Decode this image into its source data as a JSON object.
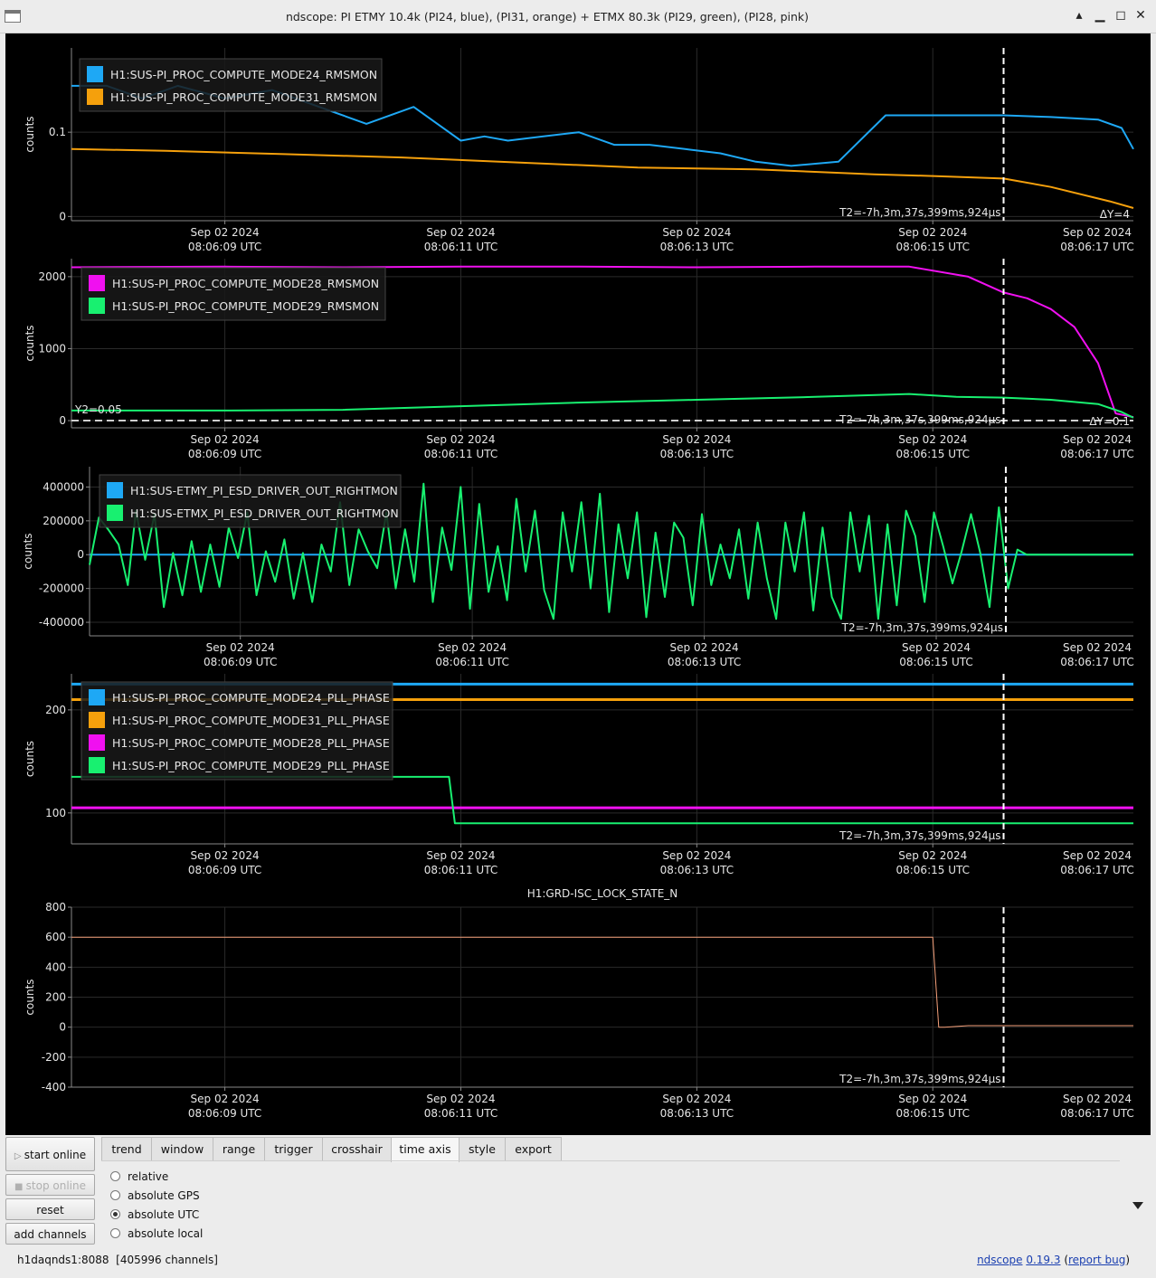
{
  "window": {
    "title": "ndscope: PI ETMY 10.4k (PI24, blue), (PI31, orange) + ETMX 80.3k (PI29, green), (PI28, pink)",
    "minimize_glyph": "▁",
    "maximize_glyph": "◻",
    "close_glyph": "✕",
    "restore_glyph": "▴"
  },
  "colors": {
    "blue": "#1ea8f5",
    "orange": "#f5a00c",
    "magenta": "#f010f0",
    "green": "#18f070",
    "peach": "#f5a07a",
    "cursor": "#ffffff",
    "background": "#000000"
  },
  "common": {
    "ylabel": "counts",
    "time_ticks": [
      {
        "date": "Sep 02 2024",
        "time": "08:06:09 UTC"
      },
      {
        "date": "Sep 02 2024",
        "time": "08:06:11 UTC"
      },
      {
        "date": "Sep 02 2024",
        "time": "08:06:13 UTC"
      },
      {
        "date": "Sep 02 2024",
        "time": "08:06:15 UTC"
      },
      {
        "date": "Sep 02 2024",
        "time": "08:06:17 UTC"
      }
    ],
    "t2_label": "T2=-7h,3m,37s,399ms,924µs",
    "cursor_time_s": 15.6
  },
  "chart_data": [
    {
      "type": "line",
      "title": "",
      "xrange": [
        7.7,
        16.7
      ],
      "ylabel": "counts",
      "yticks": [
        "0.1",
        "0"
      ],
      "delta_label": "ΔY=4",
      "legend": [
        "H1:SUS-PI_PROC_COMPUTE_MODE24_RMSMON",
        "H1:SUS-PI_PROC_COMPUTE_MODE31_RMSMON"
      ],
      "series": [
        {
          "name": "H1:SUS-PI_PROC_COMPUTE_MODE24_RMSMON",
          "color": "blue",
          "x": [
            7.7,
            8.0,
            8.3,
            8.6,
            9.0,
            9.4,
            9.8,
            10.2,
            10.6,
            11.0,
            11.2,
            11.4,
            11.7,
            12.0,
            12.3,
            12.6,
            12.9,
            13.2,
            13.5,
            13.8,
            14.2,
            14.6,
            15.0,
            15.3,
            15.6,
            16.0,
            16.4,
            16.6,
            16.7
          ],
          "y": [
            0.155,
            0.155,
            0.14,
            0.155,
            0.14,
            0.15,
            0.13,
            0.11,
            0.13,
            0.09,
            0.095,
            0.09,
            0.095,
            0.1,
            0.085,
            0.085,
            0.08,
            0.075,
            0.065,
            0.06,
            0.065,
            0.12,
            0.12,
            0.12,
            0.12,
            0.118,
            0.115,
            0.105,
            0.08
          ]
        },
        {
          "name": "H1:SUS-PI_PROC_COMPUTE_MODE31_RMSMON",
          "color": "orange",
          "x": [
            7.7,
            8.5,
            9.5,
            10.5,
            11.5,
            12.5,
            13.5,
            14.5,
            15.0,
            15.6,
            16.0,
            16.5,
            16.7
          ],
          "y": [
            0.08,
            0.078,
            0.074,
            0.07,
            0.064,
            0.058,
            0.056,
            0.05,
            0.048,
            0.045,
            0.035,
            0.018,
            0.01
          ]
        }
      ]
    },
    {
      "type": "line",
      "title": "",
      "xrange": [
        7.7,
        16.7
      ],
      "ylabel": "counts",
      "yticks": [
        "2000",
        "1000",
        "0"
      ],
      "y2_label": "Y2=0.05",
      "delta_label": "ΔY=0.1",
      "legend": [
        "H1:SUS-PI_PROC_COMPUTE_MODE28_RMSMON",
        "H1:SUS-PI_PROC_COMPUTE_MODE29_RMSMON"
      ],
      "series": [
        {
          "name": "H1:SUS-PI_PROC_COMPUTE_MODE28_RMSMON",
          "color": "magenta",
          "x": [
            7.7,
            9.0,
            10.0,
            11.0,
            12.0,
            13.0,
            14.0,
            14.8,
            15.3,
            15.6,
            15.8,
            16.0,
            16.2,
            16.4,
            16.55,
            16.7
          ],
          "y": [
            2130,
            2140,
            2130,
            2140,
            2140,
            2130,
            2140,
            2140,
            2000,
            1780,
            1700,
            1550,
            1300,
            800,
            100,
            50
          ]
        },
        {
          "name": "H1:SUS-PI_PROC_COMPUTE_MODE29_RMSMON",
          "color": "green",
          "x": [
            7.7,
            9.0,
            10.0,
            11.0,
            12.0,
            13.0,
            14.0,
            14.8,
            15.2,
            15.6,
            16.0,
            16.4,
            16.6,
            16.7
          ],
          "y": [
            140,
            140,
            150,
            200,
            250,
            290,
            330,
            370,
            330,
            320,
            290,
            230,
            120,
            40
          ]
        }
      ]
    },
    {
      "type": "line",
      "title": "",
      "xrange": [
        7.7,
        16.7
      ],
      "ylabel": "counts",
      "yticks": [
        "400000",
        "200000",
        "0",
        "-200000",
        "-400000"
      ],
      "legend": [
        "H1:SUS-ETMY_PI_ESD_DRIVER_OUT_RIGHTMON",
        "H1:SUS-ETMX_PI_ESD_DRIVER_OUT_RIGHTMON"
      ],
      "series": [
        {
          "name": "H1:SUS-ETMY_PI_ESD_DRIVER_OUT_RIGHTMON",
          "color": "blue",
          "x": [
            7.7,
            16.7
          ],
          "y": [
            0,
            0
          ]
        },
        {
          "name": "H1:SUS-ETMX_PI_ESD_DRIVER_OUT_RIGHTMON",
          "color": "green",
          "x": [
            7.7,
            7.78,
            7.86,
            7.95,
            8.03,
            8.1,
            8.18,
            8.26,
            8.34,
            8.42,
            8.5,
            8.58,
            8.66,
            8.74,
            8.82,
            8.9,
            8.98,
            9.06,
            9.14,
            9.22,
            9.3,
            9.38,
            9.46,
            9.54,
            9.62,
            9.7,
            9.78,
            9.86,
            9.94,
            10.02,
            10.1,
            10.18,
            10.26,
            10.34,
            10.42,
            10.5,
            10.58,
            10.66,
            10.74,
            10.82,
            10.9,
            10.98,
            11.06,
            11.14,
            11.22,
            11.3,
            11.38,
            11.46,
            11.54,
            11.62,
            11.7,
            11.78,
            11.86,
            11.94,
            12.02,
            12.1,
            12.18,
            12.26,
            12.34,
            12.42,
            12.5,
            12.58,
            12.66,
            12.74,
            12.82,
            12.9,
            12.98,
            13.06,
            13.14,
            13.22,
            13.3,
            13.38,
            13.46,
            13.54,
            13.62,
            13.7,
            13.78,
            13.86,
            13.94,
            14.02,
            14.1,
            14.18,
            14.26,
            14.34,
            14.42,
            14.5,
            14.58,
            14.66,
            14.74,
            14.82,
            14.9,
            14.98,
            15.06,
            15.14,
            15.22,
            15.3,
            15.38,
            15.46,
            15.54,
            15.62,
            15.7,
            15.78,
            15.86,
            15.94,
            16.7
          ],
          "y": [
            -60000,
            220000,
            150000,
            60000,
            -180000,
            260000,
            -30000,
            240000,
            -310000,
            10000,
            -240000,
            80000,
            -220000,
            60000,
            -190000,
            160000,
            -20000,
            250000,
            -240000,
            20000,
            -160000,
            90000,
            -260000,
            10000,
            -280000,
            60000,
            -100000,
            310000,
            -180000,
            150000,
            20000,
            -80000,
            250000,
            -200000,
            150000,
            -160000,
            420000,
            -280000,
            160000,
            -90000,
            400000,
            -320000,
            300000,
            -220000,
            50000,
            -270000,
            330000,
            -100000,
            260000,
            -210000,
            -380000,
            250000,
            -100000,
            310000,
            -200000,
            360000,
            -340000,
            180000,
            -140000,
            250000,
            -370000,
            130000,
            -250000,
            190000,
            100000,
            -300000,
            240000,
            -180000,
            60000,
            -140000,
            150000,
            -260000,
            190000,
            -140000,
            -380000,
            190000,
            -100000,
            250000,
            -330000,
            160000,
            -250000,
            -380000,
            250000,
            -100000,
            230000,
            -380000,
            180000,
            -300000,
            260000,
            110000,
            -280000,
            250000,
            50000,
            -170000,
            20000,
            240000,
            10000,
            -310000,
            280000,
            -200000,
            30000,
            0,
            0,
            0,
            0
          ]
        }
      ]
    },
    {
      "type": "line",
      "title": "",
      "xrange": [
        7.7,
        16.7
      ],
      "ylabel": "counts",
      "yticks": [
        "200",
        "100"
      ],
      "legend": [
        "H1:SUS-PI_PROC_COMPUTE_MODE24_PLL_PHASE",
        "H1:SUS-PI_PROC_COMPUTE_MODE31_PLL_PHASE",
        "H1:SUS-PI_PROC_COMPUTE_MODE28_PLL_PHASE",
        "H1:SUS-PI_PROC_COMPUTE_MODE29_PLL_PHASE"
      ],
      "series": [
        {
          "name": "H1:SUS-PI_PROC_COMPUTE_MODE24_PLL_PHASE",
          "color": "blue",
          "x": [
            7.7,
            16.7
          ],
          "y": [
            225,
            225
          ]
        },
        {
          "name": "H1:SUS-PI_PROC_COMPUTE_MODE31_PLL_PHASE",
          "color": "orange",
          "x": [
            7.7,
            16.7
          ],
          "y": [
            210,
            210
          ]
        },
        {
          "name": "H1:SUS-PI_PROC_COMPUTE_MODE28_PLL_PHASE",
          "color": "magenta",
          "x": [
            7.7,
            16.7
          ],
          "y": [
            105,
            105
          ]
        },
        {
          "name": "H1:SUS-PI_PROC_COMPUTE_MODE29_PLL_PHASE",
          "color": "green",
          "x": [
            7.7,
            10.9,
            10.95,
            16.7
          ],
          "y": [
            135,
            135,
            90,
            90
          ]
        }
      ]
    },
    {
      "type": "line",
      "title": "H1:GRD-ISC_LOCK_STATE_N",
      "xrange": [
        7.7,
        16.7
      ],
      "ylabel": "counts",
      "yticks": [
        "800",
        "600",
        "400",
        "200",
        "0",
        "-200",
        "-400"
      ],
      "series": [
        {
          "name": "H1:GRD-ISC_LOCK_STATE_N",
          "color": "peach",
          "x": [
            7.7,
            14.95,
            15.0,
            15.05,
            15.1,
            15.3,
            16.7
          ],
          "y": [
            600,
            600,
            600,
            0,
            0,
            10,
            10
          ]
        }
      ]
    }
  ],
  "controls": {
    "start_online": "start online",
    "stop_online": "stop online",
    "reset": "reset",
    "add_channels": "add channels",
    "tabs": [
      "trend",
      "window",
      "range",
      "trigger",
      "crosshair",
      "time axis",
      "style",
      "export"
    ],
    "active_tab": "time axis",
    "time_axis_options": [
      "relative",
      "absolute GPS",
      "absolute UTC",
      "absolute local"
    ],
    "selected_option": "absolute UTC"
  },
  "status": {
    "server": "h1daqnds1:8088",
    "channels": "[405996 channels]"
  },
  "footer": {
    "app": "ndscope",
    "version": "0.19.3",
    "report": "report bug",
    "open_paren": "(",
    "close_paren": ")"
  }
}
